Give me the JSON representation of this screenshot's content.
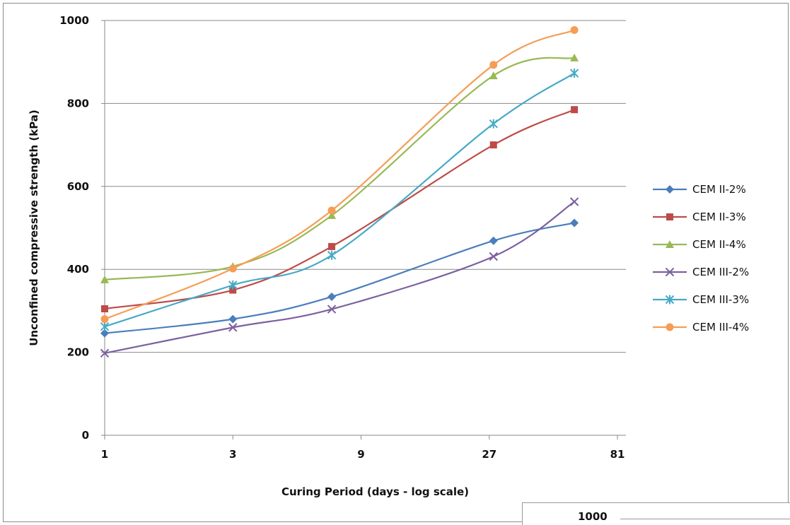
{
  "chart_data": {
    "type": "line",
    "title": "",
    "xlabel": "Curing Period (days - log scale)",
    "ylabel": "Unconfined compressive strength (kPa)",
    "x_scale": "log",
    "x_ticks": [
      1,
      3,
      9,
      27,
      81
    ],
    "y_ticks": [
      0,
      200,
      400,
      600,
      800,
      1000
    ],
    "xlim": [
      1,
      81
    ],
    "ylim": [
      0,
      1000
    ],
    "grid": "horizontal",
    "legend_position": "right",
    "x": [
      1,
      3,
      7,
      28,
      56
    ],
    "series": [
      {
        "name": "CEM II-2%",
        "color": "#4A7EBB",
        "marker": "diamond",
        "values": [
          246,
          280,
          334,
          469,
          512
        ]
      },
      {
        "name": "CEM II-3%",
        "color": "#BE4B48",
        "marker": "square",
        "values": [
          305,
          350,
          455,
          700,
          785
        ]
      },
      {
        "name": "CEM II-4%",
        "color": "#98B954",
        "marker": "triangle",
        "values": [
          375,
          407,
          530,
          867,
          910
        ]
      },
      {
        "name": "CEM III-2%",
        "color": "#7D60A0",
        "marker": "x",
        "values": [
          198,
          260,
          304,
          431,
          563
        ]
      },
      {
        "name": "CEM III-3%",
        "color": "#46AAC5",
        "marker": "asterisk",
        "values": [
          262,
          362,
          434,
          751,
          873
        ]
      },
      {
        "name": "CEM III-4%",
        "color": "#F59D56",
        "marker": "circle",
        "values": [
          280,
          402,
          542,
          893,
          977
        ]
      }
    ]
  },
  "inset": {
    "label": "1000"
  }
}
